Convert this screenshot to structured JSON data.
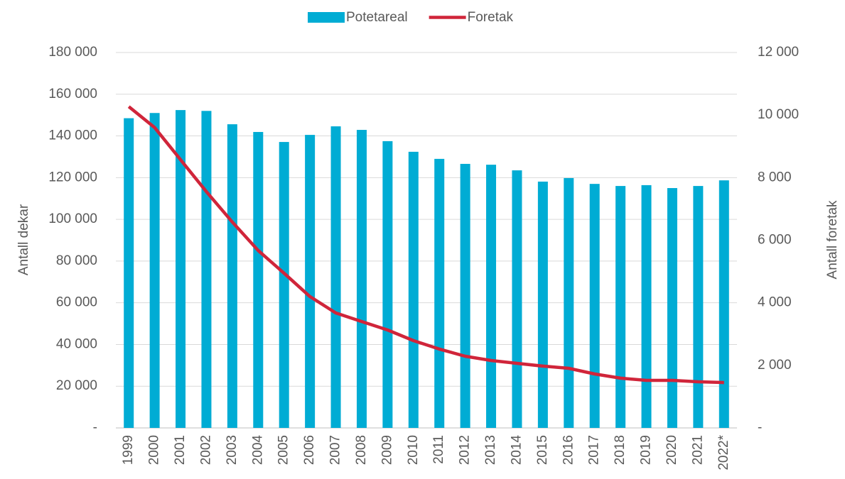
{
  "chart_data": {
    "type": "bar_line",
    "categories": [
      "1999",
      "2000",
      "2001",
      "2002",
      "2003",
      "2004",
      "2005",
      "2006",
      "2007",
      "2008",
      "2009",
      "2010",
      "2011",
      "2012",
      "2013",
      "2014",
      "2015",
      "2016",
      "2017",
      "2018",
      "2019",
      "2020",
      "2021",
      "2022*"
    ],
    "series": [
      {
        "name": "Potetareal",
        "type": "bar",
        "color": "#00acd4",
        "values": [
          148500,
          151000,
          152400,
          152000,
          145600,
          141900,
          137100,
          140500,
          144600,
          142900,
          137500,
          132400,
          129000,
          126600,
          126200,
          123500,
          118100,
          119800,
          117000,
          116000,
          116400,
          115000,
          116000,
          118700
        ]
      },
      {
        "name": "Foretak",
        "type": "line",
        "axis": "y2",
        "color": "#d0253a",
        "values": [
          10270,
          9600,
          8575,
          7550,
          6580,
          5670,
          4945,
          4200,
          3675,
          3400,
          3130,
          2790,
          2520,
          2290,
          2155,
          2065,
          1975,
          1905,
          1725,
          1590,
          1520,
          1520,
          1475,
          1450
        ]
      }
    ],
    "y_label": "Antall dekar",
    "y2_label": "Antall foretak",
    "ylim": [
      0,
      180000
    ],
    "yticks": [
      {
        "value": 0,
        "label": "-"
      },
      {
        "value": 20000,
        "label": "20 000"
      },
      {
        "value": 40000,
        "label": "40 000"
      },
      {
        "value": 60000,
        "label": "60 000"
      },
      {
        "value": 80000,
        "label": "80 000"
      },
      {
        "value": 100000,
        "label": "100 000"
      },
      {
        "value": 120000,
        "label": "120 000"
      },
      {
        "value": 140000,
        "label": "140 000"
      },
      {
        "value": 160000,
        "label": "160 000"
      },
      {
        "value": 180000,
        "label": "180 000"
      }
    ],
    "y2lim": [
      0,
      12000
    ],
    "y2ticks": [
      {
        "value": 0,
        "label": "-"
      },
      {
        "value": 2000,
        "label": "2 000"
      },
      {
        "value": 4000,
        "label": "4 000"
      },
      {
        "value": 6000,
        "label": "6 000"
      },
      {
        "value": 8000,
        "label": "8 000"
      },
      {
        "value": 10000,
        "label": "10 000"
      },
      {
        "value": 12000,
        "label": "12 000"
      }
    ],
    "grid": true,
    "legend": "top"
  }
}
